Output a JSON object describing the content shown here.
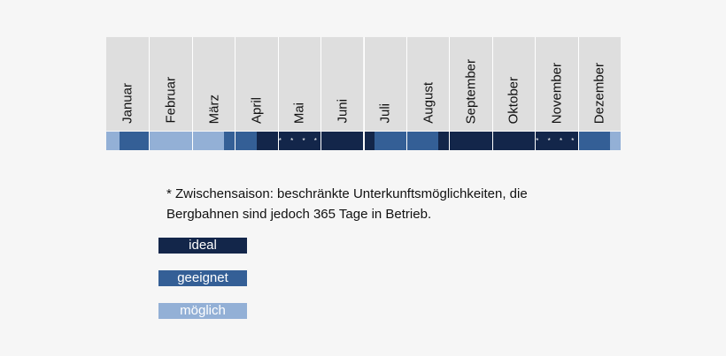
{
  "chart_data": {
    "type": "table",
    "colors": {
      "ideal": "#13264a",
      "geeignet": "#345f96",
      "moeglich": "#93b0d6",
      "none": "#dedede"
    },
    "months": [
      {
        "name": "Januar",
        "segments": [
          [
            "moeglich",
            0.3
          ],
          [
            "geeignet",
            1.0
          ]
        ],
        "stars": ""
      },
      {
        "name": "Februar",
        "segments": [
          [
            "moeglich",
            1.0
          ]
        ],
        "stars": ""
      },
      {
        "name": "März",
        "segments": [
          [
            "moeglich",
            0.75
          ],
          [
            "geeignet",
            1.0
          ]
        ],
        "stars": ""
      },
      {
        "name": "April",
        "segments": [
          [
            "geeignet",
            0.5
          ],
          [
            "ideal",
            1.0
          ]
        ],
        "stars": ""
      },
      {
        "name": "Mai",
        "segments": [
          [
            "ideal",
            1.0
          ]
        ],
        "stars": "* * * *"
      },
      {
        "name": "Juni",
        "segments": [
          [
            "ideal",
            1.0
          ]
        ],
        "stars": ""
      },
      {
        "name": "Juli",
        "segments": [
          [
            "ideal",
            0.25
          ],
          [
            "geeignet",
            1.0
          ]
        ],
        "stars": ""
      },
      {
        "name": "August",
        "segments": [
          [
            "geeignet",
            0.75
          ],
          [
            "ideal",
            1.0
          ]
        ],
        "stars": ""
      },
      {
        "name": "September",
        "segments": [
          [
            "ideal",
            1.0
          ]
        ],
        "stars": ""
      },
      {
        "name": "Oktober",
        "segments": [
          [
            "ideal",
            1.0
          ]
        ],
        "stars": ""
      },
      {
        "name": "November",
        "segments": [
          [
            "ideal",
            1.0
          ]
        ],
        "stars": "* * * *"
      },
      {
        "name": "Dezember",
        "segments": [
          [
            "geeignet",
            0.75
          ],
          [
            "moeglich",
            1.0
          ]
        ],
        "stars": ""
      }
    ],
    "footnote": "* Zwischensaison: beschränkte Unterkunftsmöglichkeiten, die Bergbahnen sind jedoch 365 Tage in Betrieb.",
    "legend": [
      {
        "label": "ideal",
        "category": "ideal"
      },
      {
        "label": "geeignet",
        "category": "geeignet"
      },
      {
        "label": "möglich",
        "category": "moeglich"
      }
    ]
  }
}
